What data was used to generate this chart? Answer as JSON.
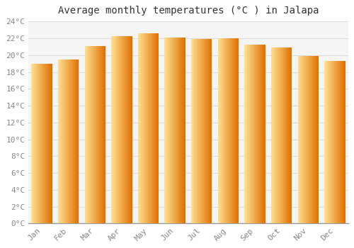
{
  "title": "Average monthly temperatures (°C ) in Jalapa",
  "months": [
    "Jan",
    "Feb",
    "Mar",
    "Apr",
    "May",
    "Jun",
    "Jul",
    "Aug",
    "Sep",
    "Oct",
    "Nov",
    "Dec"
  ],
  "values": [
    19.0,
    19.5,
    21.1,
    22.3,
    22.6,
    22.1,
    21.9,
    22.0,
    21.3,
    20.9,
    19.9,
    19.3
  ],
  "bar_color_light": "#FFD060",
  "bar_color_main": "#FFA500",
  "bar_color_dark": "#E08000",
  "ylim": [
    0,
    24
  ],
  "ytick_step": 2,
  "background_color": "#FFFFFF",
  "plot_bg_color": "#F5F5F5",
  "grid_color": "#DDDDDD",
  "title_fontsize": 10,
  "tick_fontsize": 8,
  "tick_color": "#888888",
  "font_family": "monospace"
}
